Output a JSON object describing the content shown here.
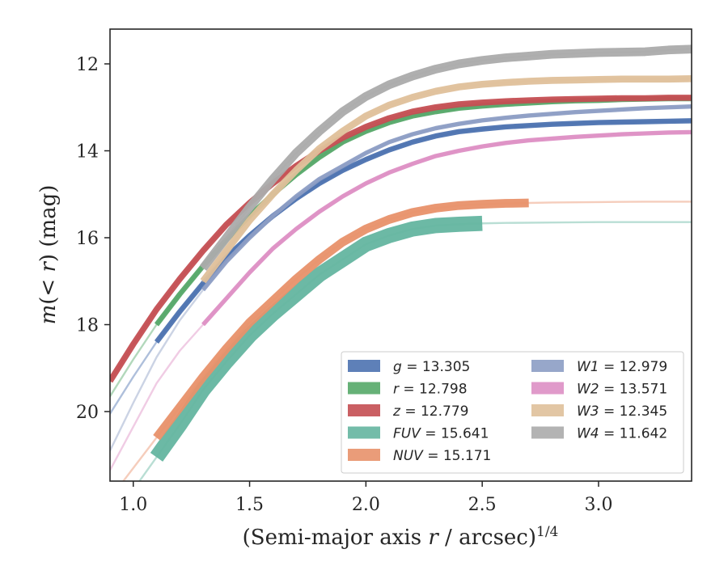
{
  "chart_data": {
    "type": "line",
    "xlabel": "(Semi-major axis r / arcsec)^1/4",
    "ylabel": "m(< r) (mag)",
    "xlim": [
      0.9,
      3.4
    ],
    "ylim": [
      21.6,
      11.2
    ],
    "y_inverted": true,
    "xticks": [
      1.0,
      1.5,
      2.0,
      2.5,
      3.0
    ],
    "xtick_labels": [
      "1.0",
      "1.5",
      "2.0",
      "2.5",
      "3.0"
    ],
    "yticks": [
      12,
      14,
      16,
      18,
      20
    ],
    "ytick_labels": [
      "12",
      "14",
      "16",
      "18",
      "20"
    ],
    "grid": false,
    "legend_position": "lower-right",
    "legend_columns": 2,
    "series": [
      {
        "name": "g = 13.305",
        "band": "g",
        "mag": "13.305",
        "color": "#4c72b0",
        "x": [
          0.9,
          1.0,
          1.1,
          1.2,
          1.3,
          1.4,
          1.5,
          1.6,
          1.7,
          1.8,
          1.9,
          2.0,
          2.1,
          2.2,
          2.3,
          2.4,
          2.5,
          2.6,
          2.7,
          2.8,
          2.9,
          3.0,
          3.1,
          3.2,
          3.3,
          3.4
        ],
        "y": [
          20.05,
          19.2,
          18.4,
          17.7,
          17.05,
          16.45,
          15.95,
          15.5,
          15.1,
          14.75,
          14.45,
          14.2,
          13.98,
          13.8,
          13.66,
          13.56,
          13.5,
          13.45,
          13.42,
          13.39,
          13.37,
          13.35,
          13.34,
          13.33,
          13.32,
          13.31
        ],
        "faint_below_x": 1.05,
        "band_width": 0.12
      },
      {
        "name": "r = 12.798",
        "band": "r",
        "mag": "12.798",
        "color": "#55a868",
        "x": [
          0.9,
          1.0,
          1.1,
          1.2,
          1.3,
          1.4,
          1.5,
          1.6,
          1.7,
          1.8,
          1.9,
          2.0,
          2.1,
          2.2,
          2.3,
          2.4,
          2.5,
          2.6,
          2.7,
          2.8,
          2.9,
          3.0,
          3.1,
          3.2,
          3.3,
          3.4
        ],
        "y": [
          19.65,
          18.8,
          18.0,
          17.3,
          16.65,
          16.05,
          15.5,
          15.0,
          14.55,
          14.15,
          13.8,
          13.55,
          13.35,
          13.2,
          13.1,
          13.02,
          12.97,
          12.93,
          12.9,
          12.87,
          12.85,
          12.84,
          12.82,
          12.81,
          12.8,
          12.8
        ],
        "faint_below_x": 1.05,
        "band_width": 0.12
      },
      {
        "name": "z = 12.779",
        "band": "z",
        "mag": "12.779",
        "color": "#c44e52",
        "x": [
          0.9,
          1.0,
          1.1,
          1.2,
          1.3,
          1.4,
          1.5,
          1.6,
          1.7,
          1.8,
          1.9,
          2.0,
          2.1,
          2.2,
          2.3,
          2.4,
          2.5,
          2.6,
          2.7,
          2.8,
          2.9,
          3.0,
          3.1,
          3.2,
          3.3,
          3.4
        ],
        "y": [
          19.3,
          18.45,
          17.65,
          16.95,
          16.3,
          15.7,
          15.2,
          14.75,
          14.35,
          14.0,
          13.7,
          13.45,
          13.25,
          13.1,
          13.0,
          12.93,
          12.89,
          12.86,
          12.84,
          12.82,
          12.81,
          12.8,
          12.79,
          12.79,
          12.78,
          12.78
        ],
        "faint_below_x": 0.0,
        "band_width": 0.14
      },
      {
        "name": "FUV = 15.641",
        "band": "FUV",
        "mag": "15.641",
        "color": "#64b5a0",
        "x": [
          0.9,
          1.0,
          1.1,
          1.2,
          1.3,
          1.4,
          1.5,
          1.6,
          1.7,
          1.8,
          1.9,
          2.0,
          2.1,
          2.2,
          2.3,
          2.4,
          2.5,
          2.6,
          2.8,
          3.0,
          3.2,
          3.4
        ],
        "y": [
          22.3,
          21.8,
          21.05,
          20.3,
          19.5,
          18.85,
          18.25,
          17.75,
          17.3,
          16.85,
          16.5,
          16.15,
          15.95,
          15.8,
          15.72,
          15.69,
          15.67,
          15.66,
          15.65,
          15.64,
          15.64,
          15.64
        ],
        "faint_below_x": 1.1,
        "faint_above_x": 2.5,
        "band_width": 0.35
      },
      {
        "name": "NUV = 15.171",
        "band": "NUV",
        "mag": "15.171",
        "color": "#e8916a",
        "x": [
          0.9,
          1.0,
          1.1,
          1.2,
          1.3,
          1.4,
          1.5,
          1.6,
          1.7,
          1.8,
          1.9,
          2.0,
          2.1,
          2.2,
          2.3,
          2.4,
          2.5,
          2.6,
          2.7,
          2.8,
          3.0,
          3.2,
          3.4
        ],
        "y": [
          22.0,
          21.3,
          20.6,
          19.9,
          19.2,
          18.55,
          17.95,
          17.45,
          16.95,
          16.5,
          16.1,
          15.8,
          15.58,
          15.42,
          15.32,
          15.26,
          15.23,
          15.21,
          15.2,
          15.19,
          15.18,
          15.17,
          15.17
        ],
        "faint_below_x": 1.1,
        "faint_above_x": 2.73,
        "band_width": 0.2
      },
      {
        "name": "W1 = 12.979",
        "band": "W1",
        "mag": "12.979",
        "color": "#8c9dc4",
        "x": [
          0.9,
          1.0,
          1.1,
          1.2,
          1.3,
          1.4,
          1.5,
          1.6,
          1.7,
          1.8,
          1.9,
          2.0,
          2.1,
          2.2,
          2.3,
          2.4,
          2.5,
          2.6,
          2.7,
          2.8,
          2.9,
          3.0,
          3.1,
          3.2,
          3.3,
          3.4
        ],
        "y": [
          20.9,
          19.8,
          18.75,
          17.9,
          17.2,
          16.55,
          16.0,
          15.5,
          15.05,
          14.65,
          14.35,
          14.05,
          13.8,
          13.62,
          13.48,
          13.38,
          13.3,
          13.24,
          13.19,
          13.15,
          13.11,
          13.08,
          13.05,
          13.02,
          13.0,
          12.98
        ],
        "faint_below_x": 1.28,
        "band_width": 0.1
      },
      {
        "name": "W2 = 13.571",
        "band": "W2",
        "mag": "13.571",
        "color": "#dd8fc4",
        "x": [
          0.9,
          1.0,
          1.1,
          1.2,
          1.3,
          1.4,
          1.5,
          1.6,
          1.7,
          1.8,
          1.9,
          2.0,
          2.1,
          2.2,
          2.3,
          2.4,
          2.5,
          2.6,
          2.7,
          2.8,
          2.9,
          3.0,
          3.1,
          3.2,
          3.3,
          3.4
        ],
        "y": [
          21.35,
          20.35,
          19.35,
          18.6,
          18.0,
          17.4,
          16.8,
          16.25,
          15.8,
          15.4,
          15.05,
          14.75,
          14.5,
          14.3,
          14.12,
          14.0,
          13.9,
          13.82,
          13.76,
          13.72,
          13.68,
          13.65,
          13.62,
          13.6,
          13.58,
          13.57
        ],
        "faint_below_x": 1.28,
        "band_width": 0.1
      },
      {
        "name": "W3 = 12.345",
        "band": "W3",
        "mag": "12.345",
        "color": "#dfc09a",
        "x": [
          1.3,
          1.4,
          1.5,
          1.6,
          1.7,
          1.8,
          1.9,
          2.0,
          2.1,
          2.2,
          2.3,
          2.4,
          2.5,
          2.6,
          2.7,
          2.8,
          2.9,
          3.0,
          3.1,
          3.2,
          3.3,
          3.4
        ],
        "y": [
          17.0,
          16.3,
          15.6,
          15.0,
          14.45,
          13.95,
          13.55,
          13.2,
          12.95,
          12.77,
          12.63,
          12.53,
          12.47,
          12.43,
          12.4,
          12.38,
          12.37,
          12.36,
          12.35,
          12.35,
          12.35,
          12.34
        ],
        "faint_below_x": 0.0,
        "band_width": 0.16
      },
      {
        "name": "W4 = 11.642",
        "band": "W4",
        "mag": "11.642",
        "color": "#ababab",
        "x": [
          1.3,
          1.4,
          1.5,
          1.6,
          1.7,
          1.8,
          1.9,
          2.0,
          2.1,
          2.2,
          2.3,
          2.4,
          2.5,
          2.6,
          2.7,
          2.8,
          2.9,
          3.0,
          3.1,
          3.2,
          3.3,
          3.4
        ],
        "y": [
          16.7,
          16.0,
          15.3,
          14.65,
          14.05,
          13.55,
          13.1,
          12.75,
          12.48,
          12.28,
          12.12,
          12.0,
          11.92,
          11.86,
          11.82,
          11.78,
          11.76,
          11.74,
          11.73,
          11.72,
          11.68,
          11.66
        ],
        "faint_below_x": 0.0,
        "band_width": 0.2
      }
    ]
  }
}
